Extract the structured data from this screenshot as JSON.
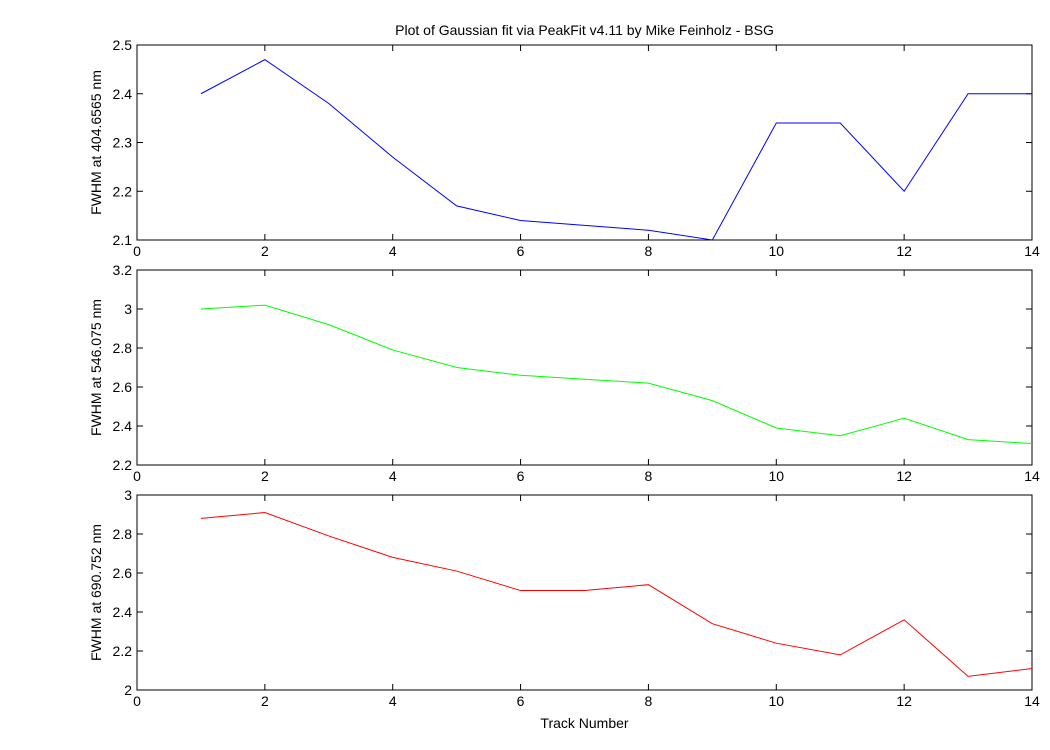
{
  "chart_data": [
    {
      "type": "line",
      "title": "Plot of Gaussian fit via PeakFit v4.11 by Mike Feinholz - BSG",
      "y_label": "FWHM at 404.6565 nm",
      "x": [
        1,
        2,
        3,
        4,
        5,
        6,
        7,
        8,
        9,
        10,
        11,
        12,
        13,
        14
      ],
      "series": [
        {
          "color": "#0000ff",
          "values": [
            2.4,
            2.47,
            2.38,
            2.27,
            2.17,
            2.14,
            2.13,
            2.12,
            2.1,
            2.34,
            2.34,
            2.2,
            2.4,
            2.4
          ]
        }
      ],
      "xlim": [
        0,
        14
      ],
      "xticks": [
        0,
        2,
        4,
        6,
        8,
        10,
        12,
        14
      ],
      "ylim": [
        2.1,
        2.5
      ],
      "yticks": [
        2.1,
        2.2,
        2.3,
        2.4,
        2.5
      ]
    },
    {
      "type": "line",
      "y_label": "FWHM at 546.075 nm",
      "x": [
        1,
        2,
        3,
        4,
        5,
        6,
        7,
        8,
        9,
        10,
        11,
        12,
        13,
        14
      ],
      "series": [
        {
          "color": "#00ff00",
          "values": [
            3.0,
            3.02,
            2.92,
            2.79,
            2.7,
            2.66,
            2.64,
            2.62,
            2.53,
            2.39,
            2.35,
            2.44,
            2.33,
            2.31
          ]
        }
      ],
      "xlim": [
        0,
        14
      ],
      "xticks": [
        0,
        2,
        4,
        6,
        8,
        10,
        12,
        14
      ],
      "ylim": [
        2.2,
        3.2
      ],
      "yticks": [
        2.2,
        2.4,
        2.6,
        2.8,
        3,
        3.2
      ]
    },
    {
      "type": "line",
      "y_label": "FWHM at 690.752 nm",
      "x_label": "Track Number",
      "x": [
        1,
        2,
        3,
        4,
        5,
        6,
        7,
        8,
        9,
        10,
        11,
        12,
        13,
        14
      ],
      "series": [
        {
          "color": "#ff0000",
          "values": [
            2.88,
            2.91,
            2.79,
            2.68,
            2.61,
            2.51,
            2.51,
            2.54,
            2.34,
            2.24,
            2.18,
            2.36,
            2.07,
            2.11
          ]
        }
      ],
      "xlim": [
        0,
        14
      ],
      "xticks": [
        0,
        2,
        4,
        6,
        8,
        10,
        12,
        14
      ],
      "ylim": [
        2,
        3
      ],
      "yticks": [
        2,
        2.2,
        2.4,
        2.6,
        2.8,
        3
      ]
    }
  ]
}
